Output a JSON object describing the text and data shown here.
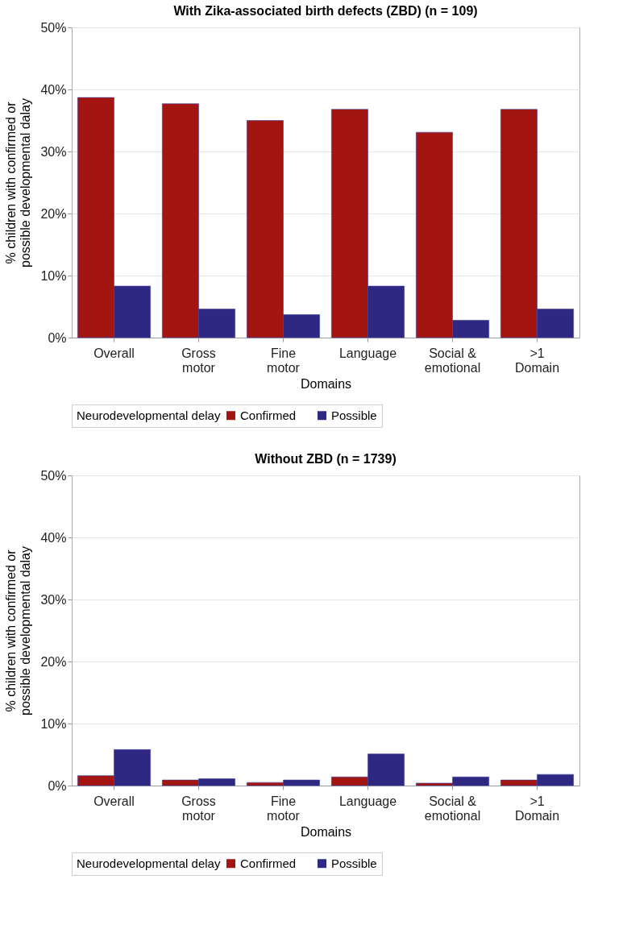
{
  "chart_data": [
    {
      "type": "bar",
      "title": "With Zika-associated birth defects (ZBD) (n = 109)",
      "xlabel": "Domains",
      "ylabel": "% children with confirmed or\npossible developmental dalay",
      "legend_title": "Neurodevelopmental delay",
      "legend": "bottom",
      "grid": "y",
      "categories": [
        "Overall",
        "Gross\nmotor",
        "Fine\nmotor",
        "Language",
        "Social &\nemotional",
        ">1\nDomain"
      ],
      "ylim": [
        0,
        50
      ],
      "yticks": [
        {
          "value": 0,
          "label": "0%"
        },
        {
          "value": 10,
          "label": "10%"
        },
        {
          "value": 20,
          "label": "20%"
        },
        {
          "value": 30,
          "label": "30%"
        },
        {
          "value": 40,
          "label": "40%"
        },
        {
          "value": 50,
          "label": "50%"
        }
      ],
      "series": [
        {
          "name": "Confirmed",
          "color": "#a31510",
          "values": [
            38.7,
            37.7,
            35.0,
            36.8,
            33.1,
            36.8
          ]
        },
        {
          "name": "Possible",
          "color": "#2e2882",
          "values": [
            8.3,
            4.6,
            3.7,
            8.3,
            2.8,
            4.6
          ]
        }
      ]
    },
    {
      "type": "bar",
      "title": "Without ZBD (n = 1739)",
      "xlabel": "Domains",
      "ylabel": "% children with confirmed or\npossible developmental dalay",
      "legend_title": "Neurodevelopmental delay",
      "legend": "bottom",
      "grid": "y",
      "categories": [
        "Overall",
        "Gross\nmotor",
        "Fine\nmotor",
        "Language",
        "Social &\nemotional",
        ">1\nDomain"
      ],
      "ylim": [
        0,
        50
      ],
      "yticks": [
        {
          "value": 0,
          "label": "0%"
        },
        {
          "value": 10,
          "label": "10%"
        },
        {
          "value": 20,
          "label": "20%"
        },
        {
          "value": 30,
          "label": "30%"
        },
        {
          "value": 40,
          "label": "40%"
        },
        {
          "value": 50,
          "label": "50%"
        }
      ],
      "series": [
        {
          "name": "Confirmed",
          "color": "#a31510",
          "values": [
            1.6,
            0.9,
            0.5,
            1.4,
            0.4,
            0.9
          ]
        },
        {
          "name": "Possible",
          "color": "#2e2882",
          "values": [
            5.8,
            1.1,
            0.9,
            5.1,
            1.4,
            1.8
          ]
        }
      ]
    }
  ]
}
